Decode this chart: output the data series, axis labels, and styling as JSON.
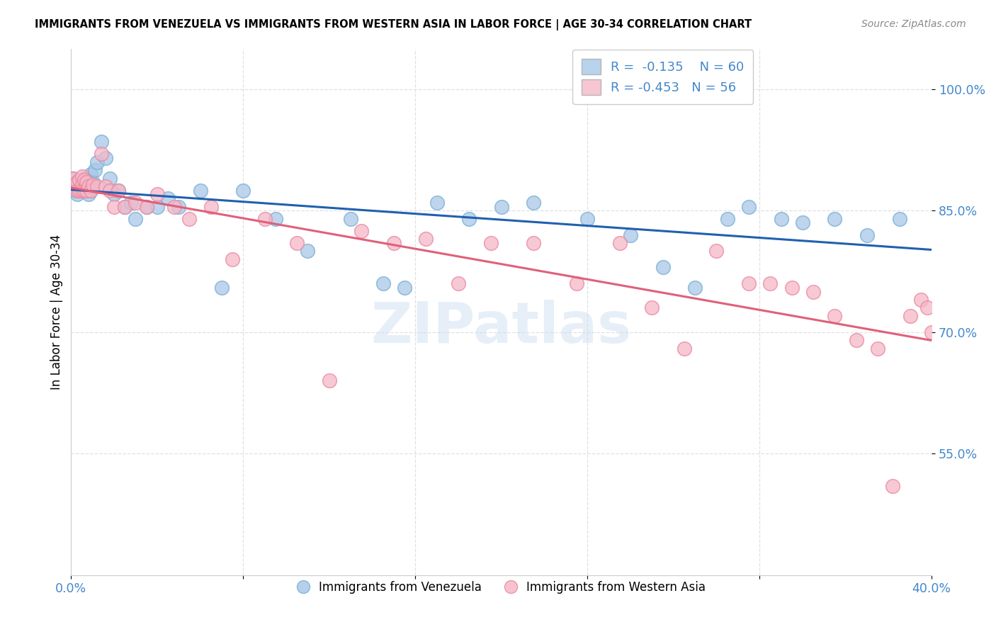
{
  "title": "IMMIGRANTS FROM VENEZUELA VS IMMIGRANTS FROM WESTERN ASIA IN LABOR FORCE | AGE 30-34 CORRELATION CHART",
  "source": "Source: ZipAtlas.com",
  "ylabel": "In Labor Force | Age 30-34",
  "xlim": [
    0.0,
    0.4
  ],
  "ylim": [
    0.4,
    1.05
  ],
  "yticks": [
    0.55,
    0.7,
    0.85,
    1.0
  ],
  "ytick_labels": [
    "55.0%",
    "70.0%",
    "85.0%",
    "100.0%"
  ],
  "legend_r1": "-0.135",
  "legend_n1": "60",
  "legend_r2": "-0.453",
  "legend_n2": "56",
  "color_blue": "#a8c8e8",
  "color_blue_edge": "#7aafd4",
  "color_pink": "#f5b8c8",
  "color_pink_edge": "#e88aa0",
  "color_blue_line": "#2060b0",
  "color_pink_line": "#e0607a",
  "color_axis_text": "#4488cc",
  "watermark": "ZIPatlas",
  "grid_color": "#e0e0e0",
  "blue_x": [
    0.001,
    0.002,
    0.002,
    0.003,
    0.003,
    0.003,
    0.004,
    0.004,
    0.004,
    0.005,
    0.005,
    0.005,
    0.006,
    0.006,
    0.006,
    0.007,
    0.007,
    0.007,
    0.008,
    0.008,
    0.009,
    0.009,
    0.01,
    0.011,
    0.012,
    0.014,
    0.016,
    0.018,
    0.02,
    0.022,
    0.025,
    0.028,
    0.03,
    0.035,
    0.04,
    0.045,
    0.05,
    0.06,
    0.07,
    0.08,
    0.095,
    0.11,
    0.13,
    0.145,
    0.155,
    0.17,
    0.185,
    0.2,
    0.215,
    0.24,
    0.26,
    0.275,
    0.29,
    0.305,
    0.315,
    0.33,
    0.34,
    0.355,
    0.37,
    0.385
  ],
  "blue_y": [
    0.89,
    0.88,
    0.875,
    0.885,
    0.875,
    0.87,
    0.885,
    0.88,
    0.875,
    0.885,
    0.88,
    0.875,
    0.89,
    0.882,
    0.875,
    0.888,
    0.88,
    0.875,
    0.885,
    0.87,
    0.895,
    0.875,
    0.885,
    0.9,
    0.91,
    0.935,
    0.915,
    0.89,
    0.87,
    0.875,
    0.855,
    0.86,
    0.84,
    0.855,
    0.855,
    0.865,
    0.855,
    0.875,
    0.755,
    0.875,
    0.84,
    0.8,
    0.84,
    0.76,
    0.755,
    0.86,
    0.84,
    0.855,
    0.86,
    0.84,
    0.82,
    0.78,
    0.755,
    0.84,
    0.855,
    0.84,
    0.835,
    0.84,
    0.82,
    0.84
  ],
  "pink_x": [
    0.001,
    0.002,
    0.003,
    0.003,
    0.004,
    0.004,
    0.005,
    0.005,
    0.005,
    0.006,
    0.006,
    0.007,
    0.007,
    0.008,
    0.009,
    0.01,
    0.012,
    0.014,
    0.016,
    0.018,
    0.02,
    0.022,
    0.025,
    0.03,
    0.035,
    0.04,
    0.048,
    0.055,
    0.065,
    0.075,
    0.09,
    0.105,
    0.12,
    0.135,
    0.15,
    0.165,
    0.18,
    0.195,
    0.215,
    0.235,
    0.255,
    0.27,
    0.285,
    0.3,
    0.315,
    0.325,
    0.335,
    0.345,
    0.355,
    0.365,
    0.375,
    0.382,
    0.39,
    0.395,
    0.398,
    0.4
  ],
  "pink_y": [
    0.89,
    0.88,
    0.885,
    0.875,
    0.888,
    0.875,
    0.892,
    0.882,
    0.875,
    0.888,
    0.875,
    0.885,
    0.875,
    0.88,
    0.875,
    0.882,
    0.88,
    0.92,
    0.88,
    0.875,
    0.855,
    0.875,
    0.855,
    0.86,
    0.855,
    0.87,
    0.855,
    0.84,
    0.855,
    0.79,
    0.84,
    0.81,
    0.64,
    0.825,
    0.81,
    0.815,
    0.76,
    0.81,
    0.81,
    0.76,
    0.81,
    0.73,
    0.68,
    0.8,
    0.76,
    0.76,
    0.755,
    0.75,
    0.72,
    0.69,
    0.68,
    0.51,
    0.72,
    0.74,
    0.73,
    0.7
  ]
}
